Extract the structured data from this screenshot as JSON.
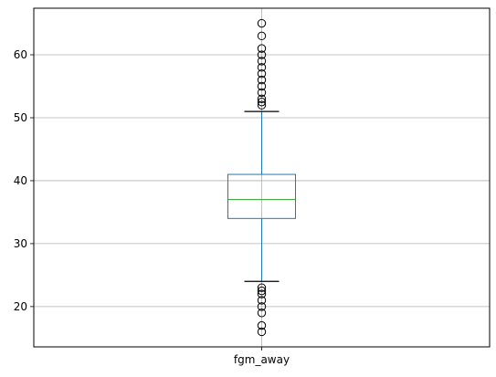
{
  "chart_data": {
    "type": "box",
    "title": "",
    "xlabel": "",
    "ylabel": "",
    "categories": [
      "fgm_away"
    ],
    "ylim": [
      13.6,
      67.4
    ],
    "yticks": [
      20,
      30,
      40,
      50,
      60
    ],
    "grid": true,
    "boxes": [
      {
        "name": "fgm_away",
        "whisker_low": 24,
        "q1": 34,
        "median": 37,
        "q3": 41,
        "whisker_high": 51,
        "outliers": [
          16,
          17,
          19,
          20,
          21,
          22,
          22.5,
          23,
          52,
          52.5,
          53,
          54,
          55,
          56,
          57,
          58,
          59,
          60,
          61,
          63,
          65
        ]
      }
    ],
    "colors": {
      "box": "#1f77b4",
      "whisker": "#1f77b4",
      "cap": "#000000",
      "median": "#2ca02c",
      "grid": "#b0b0b0",
      "outlier": "#000000"
    }
  }
}
